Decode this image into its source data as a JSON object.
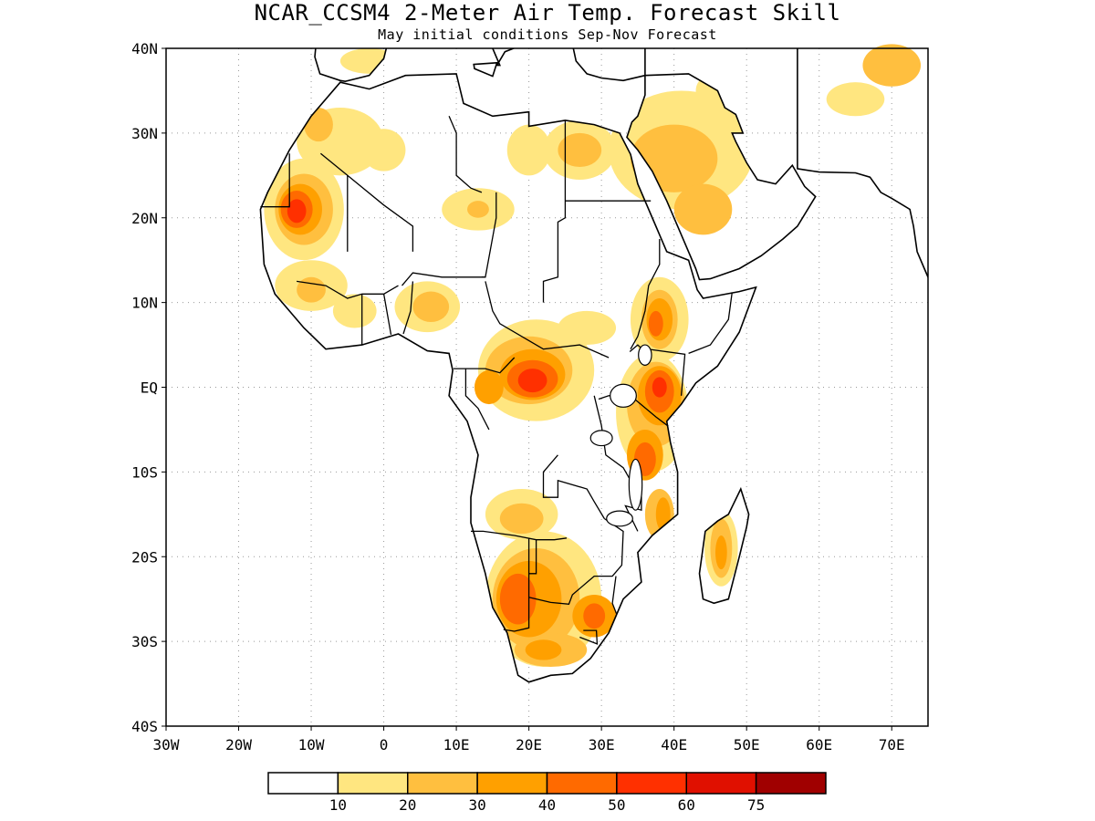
{
  "title": "NCAR_CCSM4 2-Meter Air Temp. Forecast Skill",
  "subtitle": "May initial conditions  Sep-Nov Forecast",
  "map": {
    "lon_range": [
      -30,
      75
    ],
    "lat_range": [
      -40,
      40
    ],
    "x_ticks": [
      {
        "lon": -30,
        "label": "30W"
      },
      {
        "lon": -20,
        "label": "20W"
      },
      {
        "lon": -10,
        "label": "10W"
      },
      {
        "lon": 0,
        "label": "0"
      },
      {
        "lon": 10,
        "label": "10E"
      },
      {
        "lon": 20,
        "label": "20E"
      },
      {
        "lon": 30,
        "label": "30E"
      },
      {
        "lon": 40,
        "label": "40E"
      },
      {
        "lon": 50,
        "label": "50E"
      },
      {
        "lon": 60,
        "label": "60E"
      },
      {
        "lon": 70,
        "label": "70E"
      }
    ],
    "y_ticks": [
      {
        "lat": 40,
        "label": "40N"
      },
      {
        "lat": 30,
        "label": "30N"
      },
      {
        "lat": 20,
        "label": "20N"
      },
      {
        "lat": 10,
        "label": "10N"
      },
      {
        "lat": 0,
        "label": "EQ"
      },
      {
        "lat": -10,
        "label": "10S"
      },
      {
        "lat": -20,
        "label": "20S"
      },
      {
        "lat": -30,
        "label": "30S"
      },
      {
        "lat": -40,
        "label": "40S"
      }
    ],
    "grid": "dotted",
    "skill_regions": [
      {
        "level": 1,
        "lon": -11,
        "lat": 21,
        "rlon": 5.5,
        "rlat": 6
      },
      {
        "level": 2,
        "lon": -11,
        "lat": 21,
        "rlon": 4,
        "rlat": 4.2
      },
      {
        "level": 3,
        "lon": -11.5,
        "lat": 21,
        "rlon": 3,
        "rlat": 3
      },
      {
        "level": 4,
        "lon": -12,
        "lat": 21,
        "rlon": 2.2,
        "rlat": 2.2
      },
      {
        "level": 5,
        "lon": -12,
        "lat": 20.8,
        "rlon": 1.3,
        "rlat": 1.4
      },
      {
        "level": 1,
        "lon": -6,
        "lat": 29,
        "rlon": 6,
        "rlat": 4
      },
      {
        "level": 2,
        "lon": -9,
        "lat": 31,
        "rlon": 2,
        "rlat": 2
      },
      {
        "level": 1,
        "lon": 0,
        "lat": 28,
        "rlon": 3,
        "rlat": 2.5
      },
      {
        "level": 1,
        "lon": -2,
        "lat": 38.5,
        "rlon": 4,
        "rlat": 1.5
      },
      {
        "level": 1,
        "lon": 13,
        "lat": 21,
        "rlon": 5,
        "rlat": 2.5
      },
      {
        "level": 2,
        "lon": 13,
        "lat": 21,
        "rlon": 1.5,
        "rlat": 1
      },
      {
        "level": 1,
        "lon": 20,
        "lat": 28,
        "rlon": 3,
        "rlat": 3
      },
      {
        "level": 1,
        "lon": 27,
        "lat": 28,
        "rlon": 5,
        "rlat": 3.5
      },
      {
        "level": 2,
        "lon": 27,
        "lat": 28,
        "rlon": 3,
        "rlat": 2
      },
      {
        "level": 1,
        "lon": 41,
        "lat": 28,
        "rlon": 10,
        "rlat": 7
      },
      {
        "level": 2,
        "lon": 40,
        "lat": 27,
        "rlon": 6,
        "rlat": 4
      },
      {
        "level": 2,
        "lon": 44,
        "lat": 21,
        "rlon": 4,
        "rlat": 3
      },
      {
        "level": 1,
        "lon": 47,
        "lat": 35,
        "rlon": 4,
        "rlat": 2.5
      },
      {
        "level": 1,
        "lon": 65,
        "lat": 34,
        "rlon": 4,
        "rlat": 2
      },
      {
        "level": 2,
        "lon": 70,
        "lat": 38,
        "rlon": 4,
        "rlat": 2.5
      },
      {
        "level": 1,
        "lon": -10,
        "lat": 12,
        "rlon": 5,
        "rlat": 3
      },
      {
        "level": 2,
        "lon": -10,
        "lat": 11.5,
        "rlon": 2,
        "rlat": 1.5
      },
      {
        "level": 1,
        "lon": -4,
        "lat": 9,
        "rlon": 3,
        "rlat": 2
      },
      {
        "level": 1,
        "lon": 6,
        "lat": 9.5,
        "rlon": 4.5,
        "rlat": 3
      },
      {
        "level": 2,
        "lon": 6.5,
        "lat": 9.5,
        "rlon": 2.5,
        "rlat": 1.8
      },
      {
        "level": 1,
        "lon": 21,
        "lat": 2,
        "rlon": 8,
        "rlat": 6
      },
      {
        "level": 2,
        "lon": 20,
        "lat": 2,
        "rlon": 6,
        "rlat": 4
      },
      {
        "level": 3,
        "lon": 20.5,
        "lat": 1.5,
        "rlon": 4.5,
        "rlat": 3
      },
      {
        "level": 4,
        "lon": 20.5,
        "lat": 1,
        "rlon": 3.5,
        "rlat": 2.2
      },
      {
        "level": 5,
        "lon": 20.5,
        "lat": 0.8,
        "rlon": 2,
        "rlat": 1.4
      },
      {
        "level": 3,
        "lon": 14.5,
        "lat": 0,
        "rlon": 2,
        "rlat": 2
      },
      {
        "level": 1,
        "lon": 28,
        "lat": 7,
        "rlon": 4,
        "rlat": 2
      },
      {
        "level": 1,
        "lon": 38,
        "lat": 8,
        "rlon": 4,
        "rlat": 5
      },
      {
        "level": 2,
        "lon": 38,
        "lat": 8,
        "rlon": 2.5,
        "rlat": 3.5
      },
      {
        "level": 3,
        "lon": 38,
        "lat": 8,
        "rlon": 1.8,
        "rlat": 2.5
      },
      {
        "level": 4,
        "lon": 37.5,
        "lat": 7.5,
        "rlon": 1,
        "rlat": 1.5
      },
      {
        "level": 1,
        "lon": 37,
        "lat": -3,
        "rlon": 5,
        "rlat": 7
      },
      {
        "level": 2,
        "lon": 37.5,
        "lat": -2,
        "rlon": 4,
        "rlat": 5
      },
      {
        "level": 3,
        "lon": 38,
        "lat": -1,
        "rlon": 3,
        "rlat": 3.5
      },
      {
        "level": 4,
        "lon": 38,
        "lat": -0.5,
        "rlon": 2,
        "rlat": 2.5
      },
      {
        "level": 5,
        "lon": 38,
        "lat": 0,
        "rlon": 1,
        "rlat": 1.2
      },
      {
        "level": 3,
        "lon": 36,
        "lat": -8,
        "rlon": 2.5,
        "rlat": 3
      },
      {
        "level": 4,
        "lon": 36,
        "lat": -8.5,
        "rlon": 1.5,
        "rlat": 2
      },
      {
        "level": 2,
        "lon": 38,
        "lat": -15,
        "rlon": 2,
        "rlat": 3
      },
      {
        "level": 3,
        "lon": 38.5,
        "lat": -15,
        "rlon": 1,
        "rlat": 2
      },
      {
        "level": 1,
        "lon": 19,
        "lat": -15,
        "rlon": 5,
        "rlat": 3
      },
      {
        "level": 2,
        "lon": 19,
        "lat": -15.5,
        "rlon": 3,
        "rlat": 1.8
      },
      {
        "level": 1,
        "lon": 22,
        "lat": -25,
        "rlon": 8,
        "rlat": 8
      },
      {
        "level": 2,
        "lon": 21,
        "lat": -25,
        "rlon": 6,
        "rlat": 6
      },
      {
        "level": 3,
        "lon": 20,
        "lat": -25,
        "rlon": 4.5,
        "rlat": 4.5
      },
      {
        "level": 4,
        "lon": 18.5,
        "lat": -25,
        "rlon": 2.5,
        "rlat": 3
      },
      {
        "level": 3,
        "lon": 29,
        "lat": -27,
        "rlon": 3,
        "rlat": 2.5
      },
      {
        "level": 4,
        "lon": 29,
        "lat": -27,
        "rlon": 1.5,
        "rlat": 1.5
      },
      {
        "level": 2,
        "lon": 23,
        "lat": -31,
        "rlon": 5,
        "rlat": 2
      },
      {
        "level": 3,
        "lon": 22,
        "lat": -31,
        "rlon": 2.5,
        "rlat": 1.2
      },
      {
        "level": 1,
        "lon": 46.5,
        "lat": -19,
        "rlon": 2.3,
        "rlat": 4.5
      },
      {
        "level": 2,
        "lon": 46.5,
        "lat": -19,
        "rlon": 1.5,
        "rlat": 3.5
      },
      {
        "level": 3,
        "lon": 46.5,
        "lat": -19.5,
        "rlon": 0.8,
        "rlat": 2
      }
    ]
  },
  "colorbar": {
    "colors": [
      "#ffffff",
      "#ffe680",
      "#ffbf3f",
      "#ffa000",
      "#ff6a00",
      "#ff3000",
      "#e01000",
      "#a00000"
    ],
    "labels": [
      "10",
      "20",
      "30",
      "40",
      "50",
      "60",
      "75"
    ]
  }
}
